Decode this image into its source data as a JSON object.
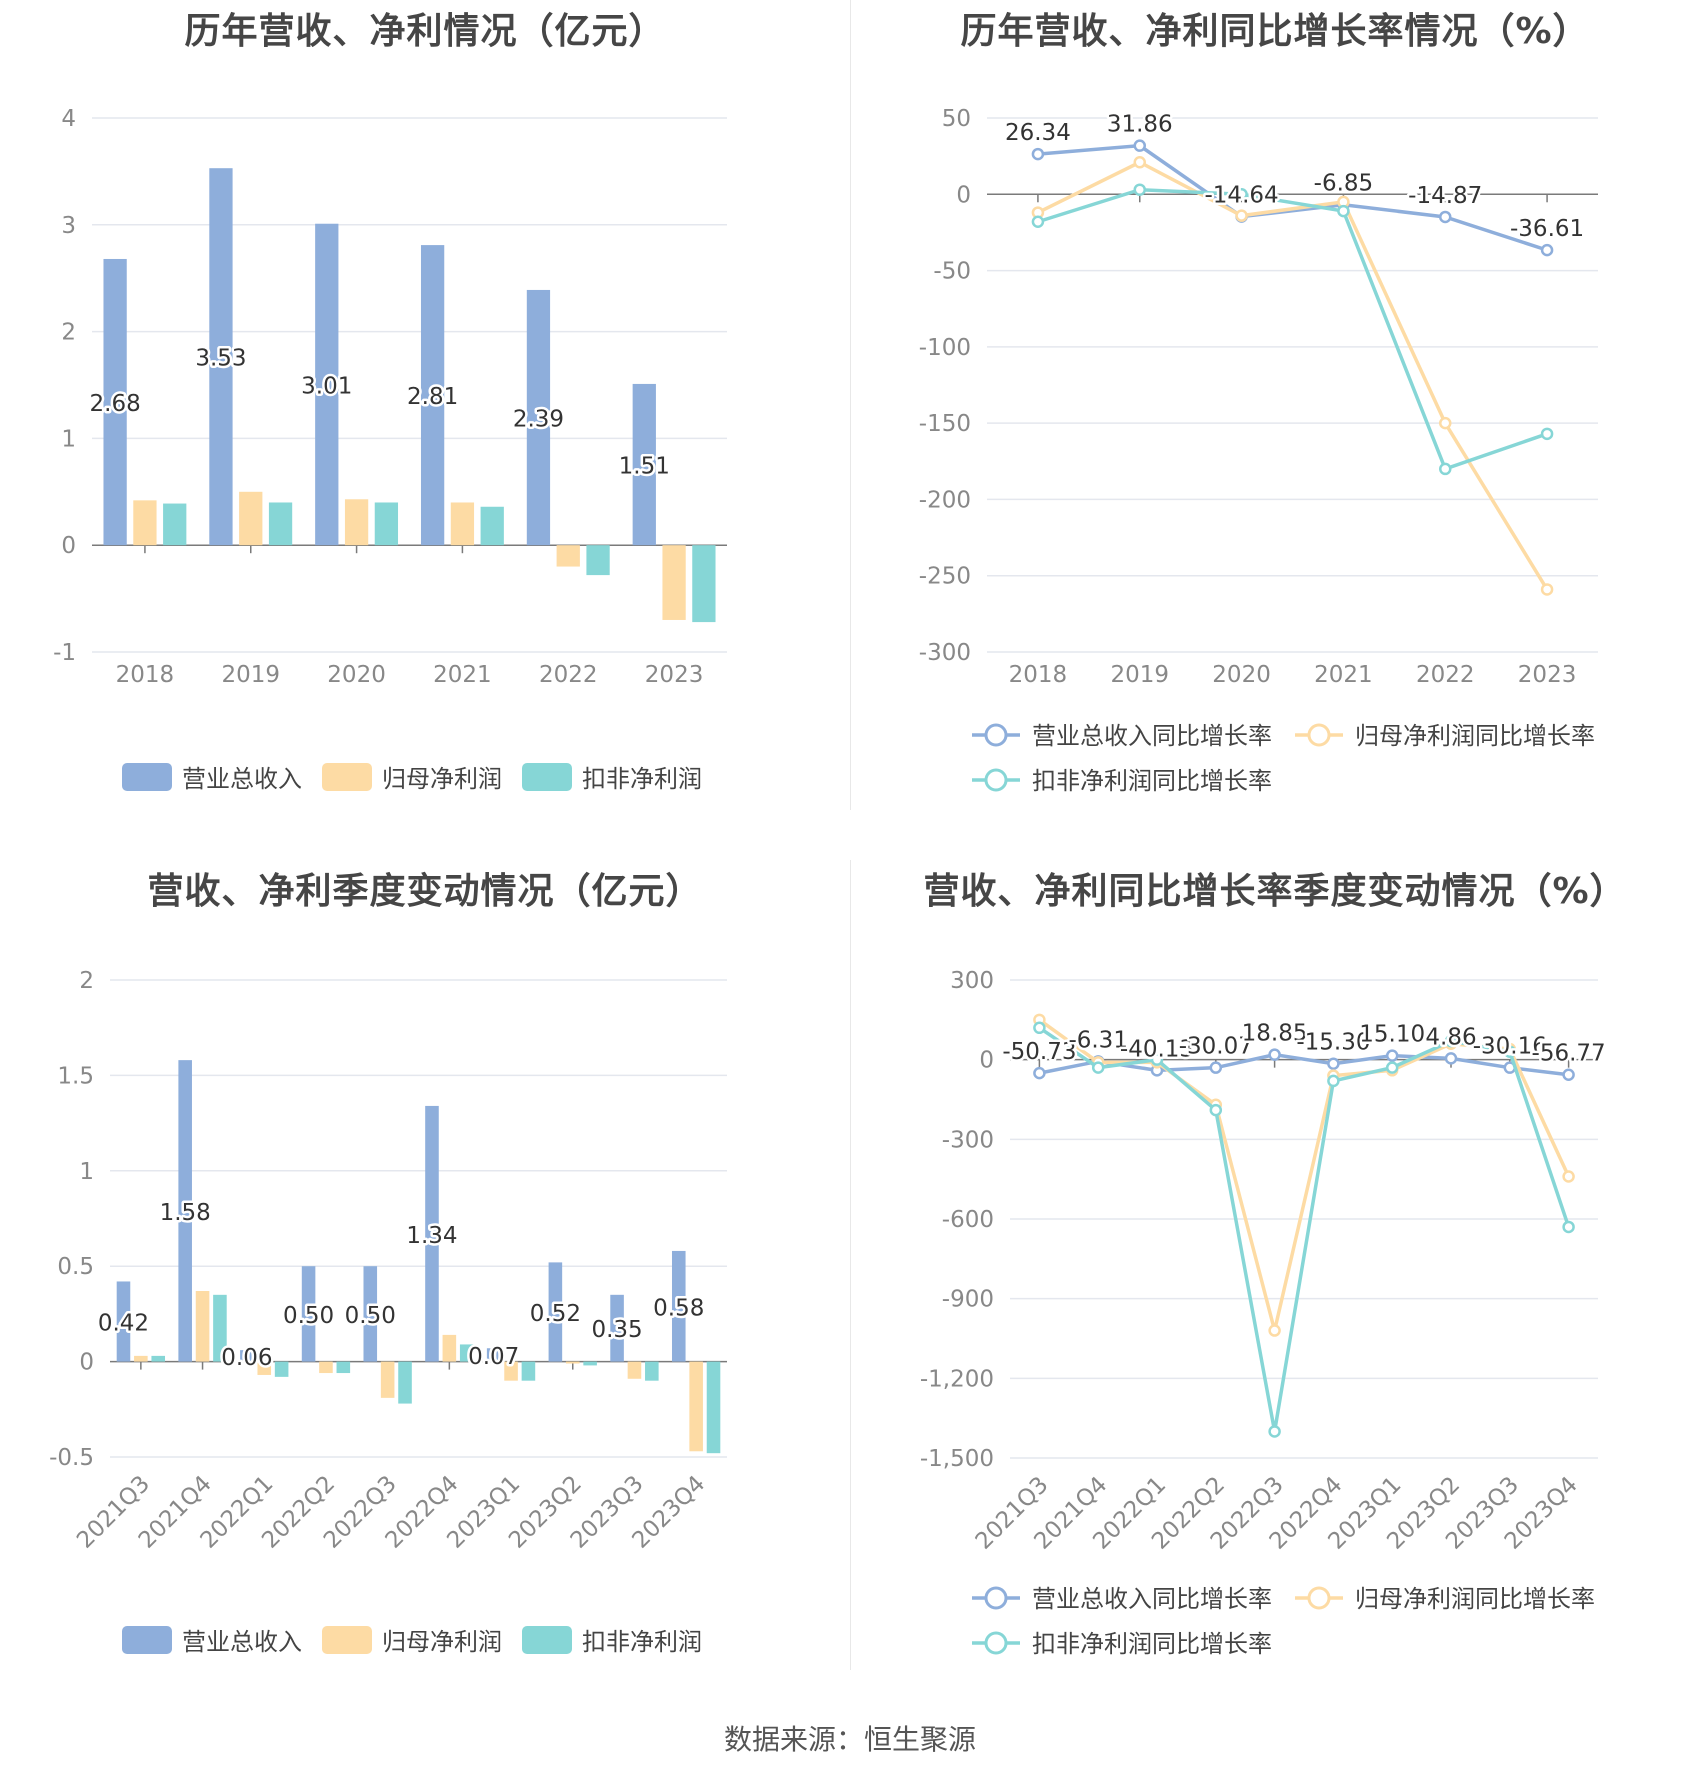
{
  "source_note": "数据来源：恒生聚源",
  "colors": {
    "revenue": "#8eaedb",
    "net_profit": "#fddba4",
    "deducted_profit": "#86d6d6",
    "grid": "#e4e7ee",
    "axis": "#7a7a7a",
    "tick_text": "#888888"
  },
  "charts": [
    {
      "id": "p1",
      "title": "历年营收、净利情况（亿元）",
      "chart_data": {
        "type": "bar",
        "categories": [
          "2018",
          "2019",
          "2020",
          "2021",
          "2022",
          "2023"
        ],
        "ylim": [
          -1,
          4
        ],
        "yticks": [
          -1,
          0,
          1,
          2,
          3,
          4
        ],
        "series": [
          {
            "name": "营业总收入",
            "color": "#8eaedb",
            "values": [
              2.68,
              3.53,
              3.01,
              2.81,
              2.39,
              1.51
            ],
            "labels": [
              "2.68",
              "3.53",
              "3.01",
              "2.81",
              "2.39",
              "1.51"
            ]
          },
          {
            "name": "归母净利润",
            "color": "#fddba4",
            "values": [
              0.42,
              0.5,
              0.43,
              0.4,
              -0.2,
              -0.7
            ]
          },
          {
            "name": "扣非净利润",
            "color": "#86d6d6",
            "values": [
              0.39,
              0.4,
              0.4,
              0.36,
              -0.28,
              -0.72
            ]
          }
        ],
        "legend": "bottom"
      }
    },
    {
      "id": "p2",
      "title": "历年营收、净利同比增长率情况（%）",
      "chart_data": {
        "type": "line",
        "categories": [
          "2018",
          "2019",
          "2020",
          "2021",
          "2022",
          "2023"
        ],
        "ylim": [
          -300,
          50
        ],
        "yticks": [
          -300,
          -250,
          -200,
          -150,
          -100,
          -50,
          0,
          50
        ],
        "series": [
          {
            "name": "营业总收入同比增长率",
            "color": "#8eaedb",
            "values": [
              26.34,
              31.86,
              -14.64,
              -6.85,
              -14.87,
              -36.61
            ],
            "labels": [
              "26.34",
              "31.86",
              "-14.64",
              "-6.85",
              "-14.87",
              "-36.61"
            ]
          },
          {
            "name": "归母净利润同比增长率",
            "color": "#fddba4",
            "values": [
              -12,
              21,
              -14,
              -5,
              -150,
              -259
            ]
          },
          {
            "name": "扣非净利润同比增长率",
            "color": "#86d6d6",
            "values": [
              -18,
              3,
              0,
              -11,
              -180,
              -157
            ]
          }
        ],
        "legend": "bottom"
      }
    },
    {
      "id": "p3",
      "title": "营收、净利季度变动情况（亿元）",
      "chart_data": {
        "type": "bar",
        "categories": [
          "2021Q3",
          "2021Q4",
          "2022Q1",
          "2022Q2",
          "2022Q3",
          "2022Q4",
          "2023Q1",
          "2023Q2",
          "2023Q3",
          "2023Q4"
        ],
        "ylim": [
          -0.5,
          2
        ],
        "yticks": [
          -0.5,
          0,
          0.5,
          1,
          1.5,
          2
        ],
        "series": [
          {
            "name": "营业总收入",
            "color": "#8eaedb",
            "values": [
              0.42,
              1.58,
              0.06,
              0.5,
              0.5,
              1.34,
              0.07,
              0.52,
              0.35,
              0.58
            ],
            "labels": [
              "0.42",
              "1.58",
              "0.06",
              "0.50",
              "0.50",
              "1.34",
              "0.07",
              "0.52",
              "0.35",
              "0.58"
            ]
          },
          {
            "name": "归母净利润",
            "color": "#fddba4",
            "values": [
              0.03,
              0.37,
              -0.07,
              -0.06,
              -0.19,
              0.14,
              -0.1,
              -0.01,
              -0.09,
              -0.47
            ]
          },
          {
            "name": "扣非净利润",
            "color": "#86d6d6",
            "values": [
              0.03,
              0.35,
              -0.08,
              -0.06,
              -0.22,
              0.09,
              -0.1,
              -0.02,
              -0.1,
              -0.48
            ]
          }
        ],
        "legend": "bottom"
      }
    },
    {
      "id": "p4",
      "title": "营收、净利同比增长率季度变动情况（%）",
      "chart_data": {
        "type": "line",
        "categories": [
          "2021Q3",
          "2021Q4",
          "2022Q1",
          "2022Q2",
          "2022Q3",
          "2022Q4",
          "2023Q1",
          "2023Q2",
          "2023Q3",
          "2023Q4"
        ],
        "ylim": [
          -1500,
          300
        ],
        "yticks": [
          -1500,
          -1200,
          -900,
          -600,
          -300,
          0,
          300
        ],
        "ytick_labels": [
          "-1,500",
          "-1,200",
          "-900",
          "-600",
          "-300",
          "0",
          "300"
        ],
        "series": [
          {
            "name": "营业总收入同比增长率",
            "color": "#8eaedb",
            "values": [
              -50.73,
              -6.31,
              -40.13,
              -30.07,
              18.85,
              -15.3,
              15.1,
              4.86,
              -30.16,
              -56.77
            ],
            "labels": [
              "-50.73",
              "-6.31",
              "-40.13",
              "-30.07",
              "18.85",
              "-15.30",
              "15.10",
              "4.86",
              "-30.16",
              "-56.77"
            ]
          },
          {
            "name": "归母净利润同比增长率",
            "color": "#fddba4",
            "values": [
              150,
              -10,
              -10,
              -170,
              -1020,
              -60,
              -40,
              60,
              40,
              -440
            ]
          },
          {
            "name": "扣非净利润同比增长率",
            "color": "#86d6d6",
            "values": [
              120,
              -30,
              0,
              -190,
              -1400,
              -80,
              -30,
              70,
              30,
              -630
            ]
          }
        ],
        "legend": "bottom"
      }
    }
  ]
}
